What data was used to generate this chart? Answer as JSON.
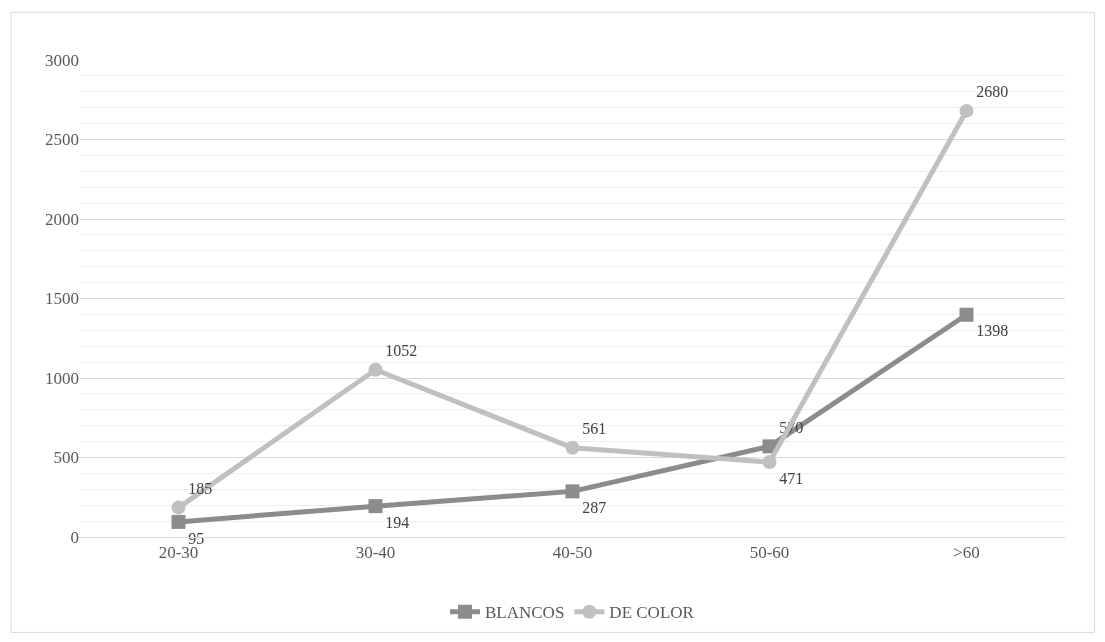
{
  "chart_data": {
    "type": "line",
    "categories": [
      "20-30",
      "30-40",
      "40-50",
      "50-60",
      ">60"
    ],
    "series": [
      {
        "name": "BLANCOS",
        "color": "#8c8c8c",
        "marker": "square",
        "values": [
          95,
          194,
          287,
          570,
          1398
        ]
      },
      {
        "name": "DE COLOR",
        "color": "#c0c0c0",
        "marker": "circle",
        "values": [
          185,
          1052,
          561,
          471,
          2680
        ]
      }
    ],
    "ylim": [
      0,
      3000
    ],
    "yticks": [
      0,
      500,
      1000,
      1500,
      2000,
      2500,
      3000
    ],
    "grid": "y",
    "legend": "bottom",
    "data_labels": true,
    "line_style": "solid"
  }
}
